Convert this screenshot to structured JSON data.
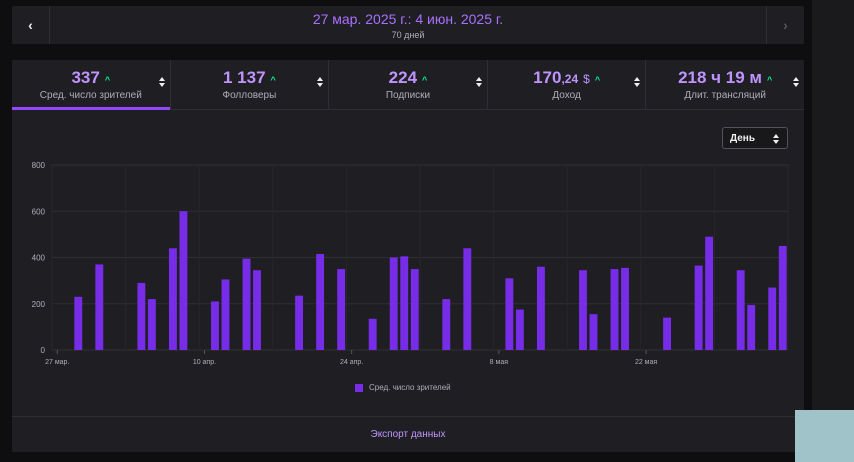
{
  "date_nav": {
    "prev_icon": "chevron-left-icon",
    "next_icon": "chevron-right-icon",
    "prev_glyph": "‹",
    "next_glyph": "›",
    "range": "27 мар. 2025 г.: 4 июн. 2025 г.",
    "days": "70 дней"
  },
  "metrics": [
    {
      "value": "337",
      "decimal": "",
      "currency": "",
      "trend": "^",
      "label": "Сред. число зрителей"
    },
    {
      "value": "1 137",
      "decimal": "",
      "currency": "",
      "trend": "^",
      "label": "Фолловеры"
    },
    {
      "value": "224",
      "decimal": "",
      "currency": "",
      "trend": "^",
      "label": "Подписки"
    },
    {
      "value": "170",
      "decimal": ",24",
      "currency": "$",
      "trend": "^",
      "label": "Доход"
    },
    {
      "value": "218 ч 19 м",
      "decimal": "",
      "currency": "",
      "trend": "^",
      "label": "Длит. трансляций"
    }
  ],
  "period_select": {
    "value": "День"
  },
  "chart_data": {
    "type": "bar",
    "y_ticks": [
      "0",
      "200",
      "400",
      "600",
      "800"
    ],
    "ylim": [
      0,
      800
    ],
    "x_tick_labels": [
      {
        "label": "27 мар.",
        "index": 0
      },
      {
        "label": "10 апр.",
        "index": 14
      },
      {
        "label": "24 апр.",
        "index": 28
      },
      {
        "label": "8 мая",
        "index": 42
      },
      {
        "label": "22 мая",
        "index": 56
      }
    ],
    "num_days": 70,
    "series": [
      {
        "name": "Сред. число зрителей",
        "color": "#772ce8",
        "points": [
          {
            "day": 2,
            "value": 230
          },
          {
            "day": 4,
            "value": 370
          },
          {
            "day": 8,
            "value": 290
          },
          {
            "day": 9,
            "value": 220
          },
          {
            "day": 11,
            "value": 440
          },
          {
            "day": 12,
            "value": 600
          },
          {
            "day": 15,
            "value": 210
          },
          {
            "day": 16,
            "value": 305
          },
          {
            "day": 18,
            "value": 395
          },
          {
            "day": 19,
            "value": 345
          },
          {
            "day": 23,
            "value": 235
          },
          {
            "day": 25,
            "value": 415
          },
          {
            "day": 27,
            "value": 350
          },
          {
            "day": 30,
            "value": 135
          },
          {
            "day": 32,
            "value": 400
          },
          {
            "day": 33,
            "value": 405
          },
          {
            "day": 34,
            "value": 350
          },
          {
            "day": 37,
            "value": 220
          },
          {
            "day": 39,
            "value": 440
          },
          {
            "day": 43,
            "value": 310
          },
          {
            "day": 44,
            "value": 175
          },
          {
            "day": 46,
            "value": 360
          },
          {
            "day": 50,
            "value": 345
          },
          {
            "day": 51,
            "value": 155
          },
          {
            "day": 53,
            "value": 350
          },
          {
            "day": 54,
            "value": 355
          },
          {
            "day": 58,
            "value": 140
          },
          {
            "day": 61,
            "value": 365
          },
          {
            "day": 62,
            "value": 490
          },
          {
            "day": 65,
            "value": 345
          },
          {
            "day": 66,
            "value": 195
          },
          {
            "day": 68,
            "value": 270
          },
          {
            "day": 69,
            "value": 450
          }
        ]
      }
    ]
  },
  "export": {
    "label": "Экспорт данных"
  },
  "colors": {
    "accent": "#9147ff",
    "bar": "#772ce8",
    "metric_value": "#bf94ff",
    "trend_up": "#00f593",
    "panel_bg": "#1f1f23",
    "page_bg": "#0e0e10"
  }
}
